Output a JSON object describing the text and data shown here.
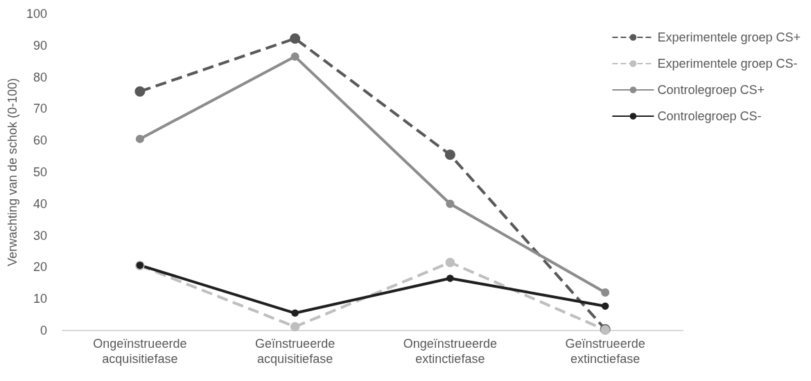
{
  "chart_data": {
    "type": "line",
    "ylabel": "Verwachting van de schok (0-100)",
    "categories": [
      "Ongeïnstrueerde\nacquisitiefase",
      "Geïnstrueerde\nacquisitiefase",
      "Ongeïnstrueerde\nextinctiefase",
      "Geïnstrueerde\nextinctiefase"
    ],
    "series": [
      {
        "name": "Experimentele groep CS+",
        "color": "#595959",
        "line_style": "dashed",
        "values": [
          75.5,
          92.2,
          55.5,
          0.4
        ]
      },
      {
        "name": "Experimentele groep CS-",
        "color": "#bfbfbf",
        "line_style": "dashed",
        "values": [
          20.5,
          1.2,
          21.5,
          0.2
        ]
      },
      {
        "name": "Controlegroep CS+",
        "color": "#8c8c8c",
        "line_style": "solid",
        "values": [
          60.5,
          86.5,
          40,
          12
        ]
      },
      {
        "name": "Controlegroep CS-",
        "color": "#1f1f1f",
        "line_style": "solid",
        "values": [
          20.6,
          5.5,
          16.5,
          7.7
        ]
      }
    ],
    "ylim": [
      0,
      100
    ],
    "yticks": [
      0,
      10,
      20,
      30,
      40,
      50,
      60,
      70,
      80,
      90,
      100
    ],
    "grid": false,
    "legend": "right",
    "marker": "circle"
  }
}
